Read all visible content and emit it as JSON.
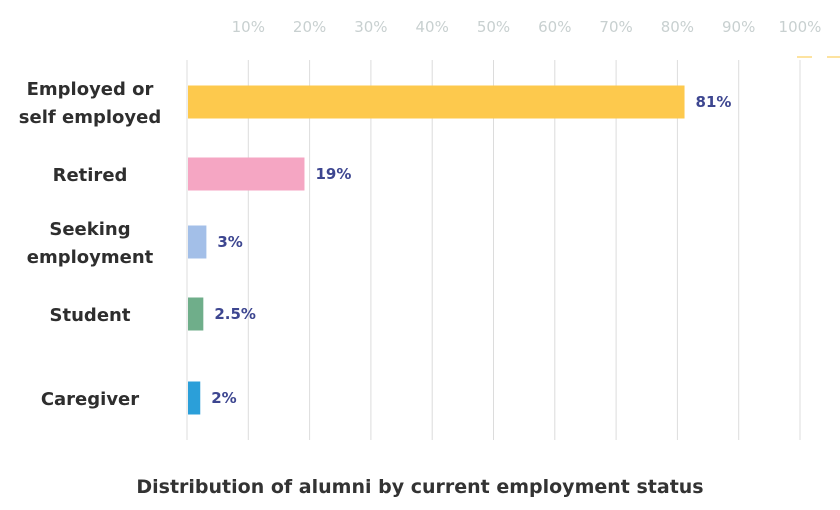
{
  "chart_data": {
    "type": "bar",
    "orientation": "horizontal",
    "title": "Distribution of alumni by current employment status",
    "categories": [
      "Employed or self employed",
      "Retired",
      "Seeking employment",
      "Student",
      "Caregiver"
    ],
    "category_lines": [
      [
        "Employed or",
        "self employed"
      ],
      [
        "Retired"
      ],
      [
        "Seeking",
        "employment"
      ],
      [
        "Student"
      ],
      [
        "Caregiver"
      ]
    ],
    "values": [
      81,
      19,
      3,
      2.5,
      2
    ],
    "value_labels": [
      "81%",
      "19%",
      "3%",
      "2.5%",
      "2%"
    ],
    "colors": [
      "#FDC94D",
      "#F5A6C3",
      "#A3BFE8",
      "#6FAE8A",
      "#2B9FD9"
    ],
    "label_color": "#3D4690",
    "xlim": [
      0,
      100
    ],
    "xticks": [
      10,
      20,
      30,
      40,
      50,
      60,
      70,
      80,
      90,
      100
    ],
    "xtick_labels": [
      "10%",
      "20%",
      "30%",
      "40%",
      "50%",
      "60%",
      "70%",
      "80%",
      "90%",
      "100%"
    ],
    "grid": true,
    "xaxis_position": "top"
  }
}
